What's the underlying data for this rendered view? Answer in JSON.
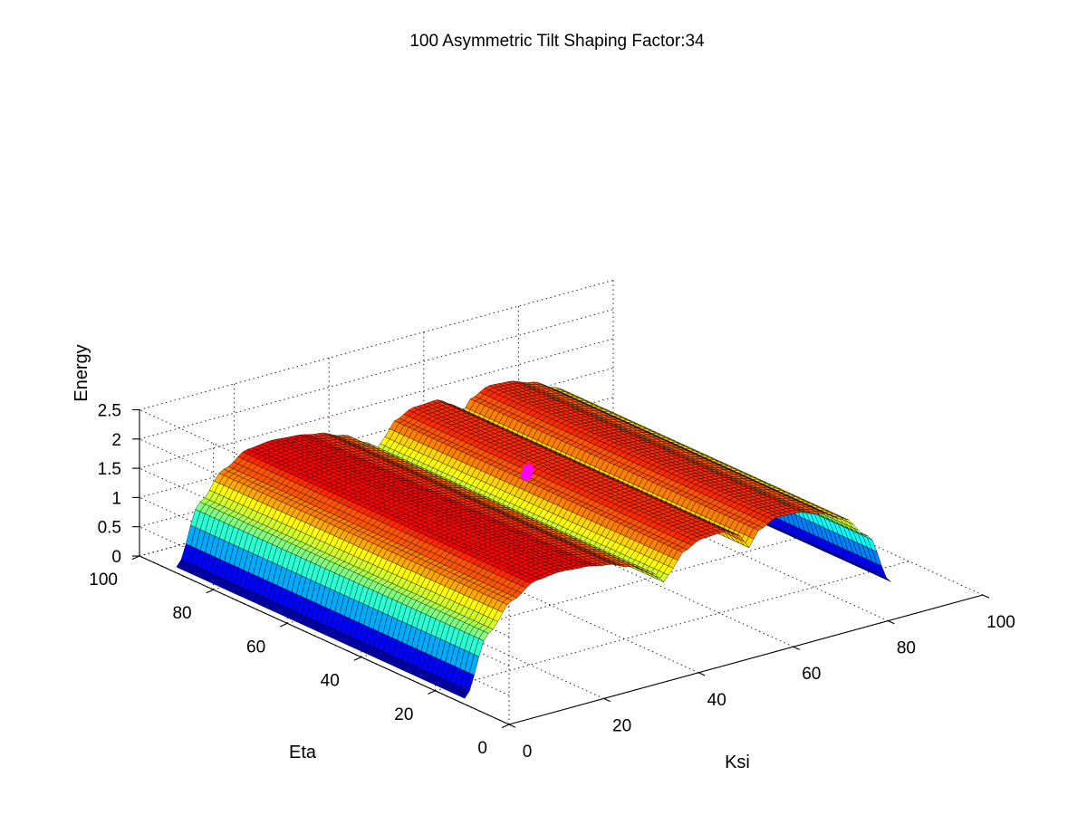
{
  "chart_data": {
    "type": "surface",
    "title": "100 Asymmetric Tilt   Shaping Factor:34",
    "xlabel": "Ksi",
    "ylabel": "Eta",
    "zlabel": "Energy",
    "xlim": [
      0,
      100
    ],
    "ylim": [
      0,
      100
    ],
    "zlim": [
      0,
      2.5
    ],
    "xticks": [
      "0",
      "20",
      "40",
      "60",
      "80",
      "100"
    ],
    "yticks": [
      "0",
      "20",
      "40",
      "60",
      "80",
      "100"
    ],
    "zticks": [
      "0",
      "0.5",
      "1",
      "1.5",
      "2",
      "2.5"
    ],
    "grid": true,
    "colormap": "jet",
    "surface": {
      "x_range": [
        0,
        90
      ],
      "y_range": [
        12,
        90
      ],
      "cross_section_ksi": [
        0,
        5,
        10,
        15,
        20,
        25,
        30,
        35,
        40,
        42,
        44,
        46,
        50,
        55,
        58,
        60,
        62,
        66,
        70,
        75,
        80,
        85,
        90
      ],
      "cross_section_energy": [
        0.1,
        1.1,
        1.55,
        1.78,
        1.82,
        1.79,
        1.72,
        1.58,
        1.35,
        1.16,
        1.35,
        1.58,
        1.72,
        1.74,
        1.6,
        1.35,
        1.6,
        1.74,
        1.72,
        1.6,
        1.4,
        1.0,
        0.1
      ],
      "constant_along_eta": true
    },
    "markers": [
      {
        "ksi": 45,
        "eta": 53,
        "energy": 1.74,
        "color": "#ff00ff"
      },
      {
        "ksi": 47,
        "eta": 55,
        "energy": 1.74,
        "color": "#ff00ff"
      }
    ]
  }
}
